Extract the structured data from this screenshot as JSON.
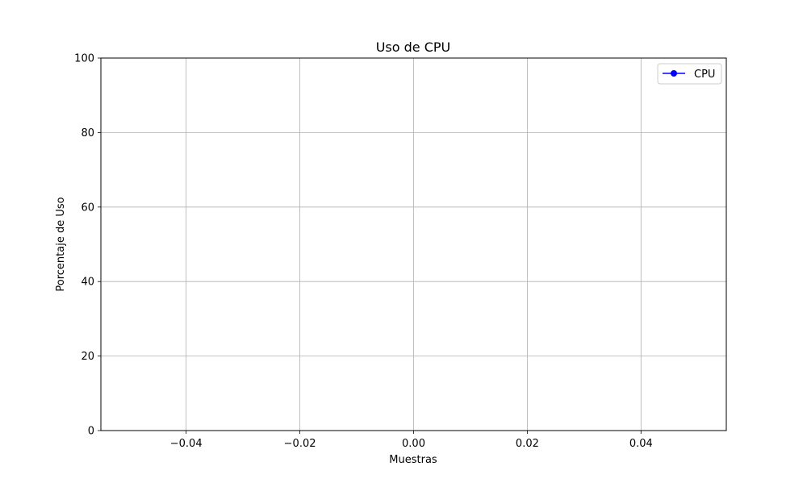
{
  "chart_data": {
    "type": "line",
    "title": "Uso de CPU",
    "xlabel": "Muestras",
    "ylabel": "Porcentaje de Uso",
    "xlim": [
      -0.055,
      0.055
    ],
    "ylim": [
      0,
      100
    ],
    "x_ticks": [
      -0.04,
      -0.02,
      0.0,
      0.02,
      0.04
    ],
    "x_tick_labels": [
      "−0.04",
      "−0.02",
      "0.00",
      "0.02",
      "0.04"
    ],
    "y_ticks": [
      0,
      20,
      40,
      60,
      80,
      100
    ],
    "y_tick_labels": [
      "0",
      "20",
      "40",
      "60",
      "80",
      "100"
    ],
    "grid": true,
    "legend_position": "top-right",
    "series": [
      {
        "name": "CPU",
        "color": "#0000ff",
        "marker": "circle",
        "x": [],
        "y": []
      }
    ]
  }
}
